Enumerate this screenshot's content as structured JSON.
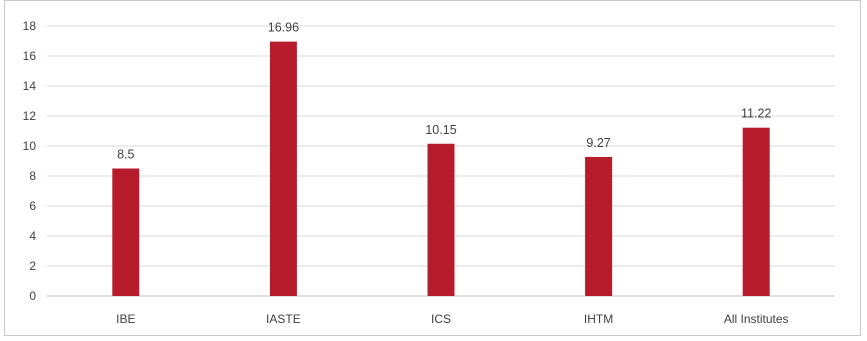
{
  "chart_data": {
    "type": "bar",
    "categories": [
      "IBE",
      "IASTE",
      "ICS",
      "IHTM",
      "All Institutes"
    ],
    "values": [
      8.5,
      16.96,
      10.15,
      9.27,
      11.22
    ],
    "data_labels": [
      "8.5",
      "16.96",
      "10.15",
      "9.27",
      "11.22"
    ],
    "title": "",
    "xlabel": "",
    "ylabel": "",
    "ylim": [
      0,
      18
    ],
    "yticks": [
      "0",
      "2",
      "4",
      "6",
      "8",
      "10",
      "12",
      "14",
      "16",
      "18"
    ],
    "grid": true,
    "legend": "none",
    "bar_color": "#b71c2c",
    "grid_color": "#d9d9d9"
  }
}
